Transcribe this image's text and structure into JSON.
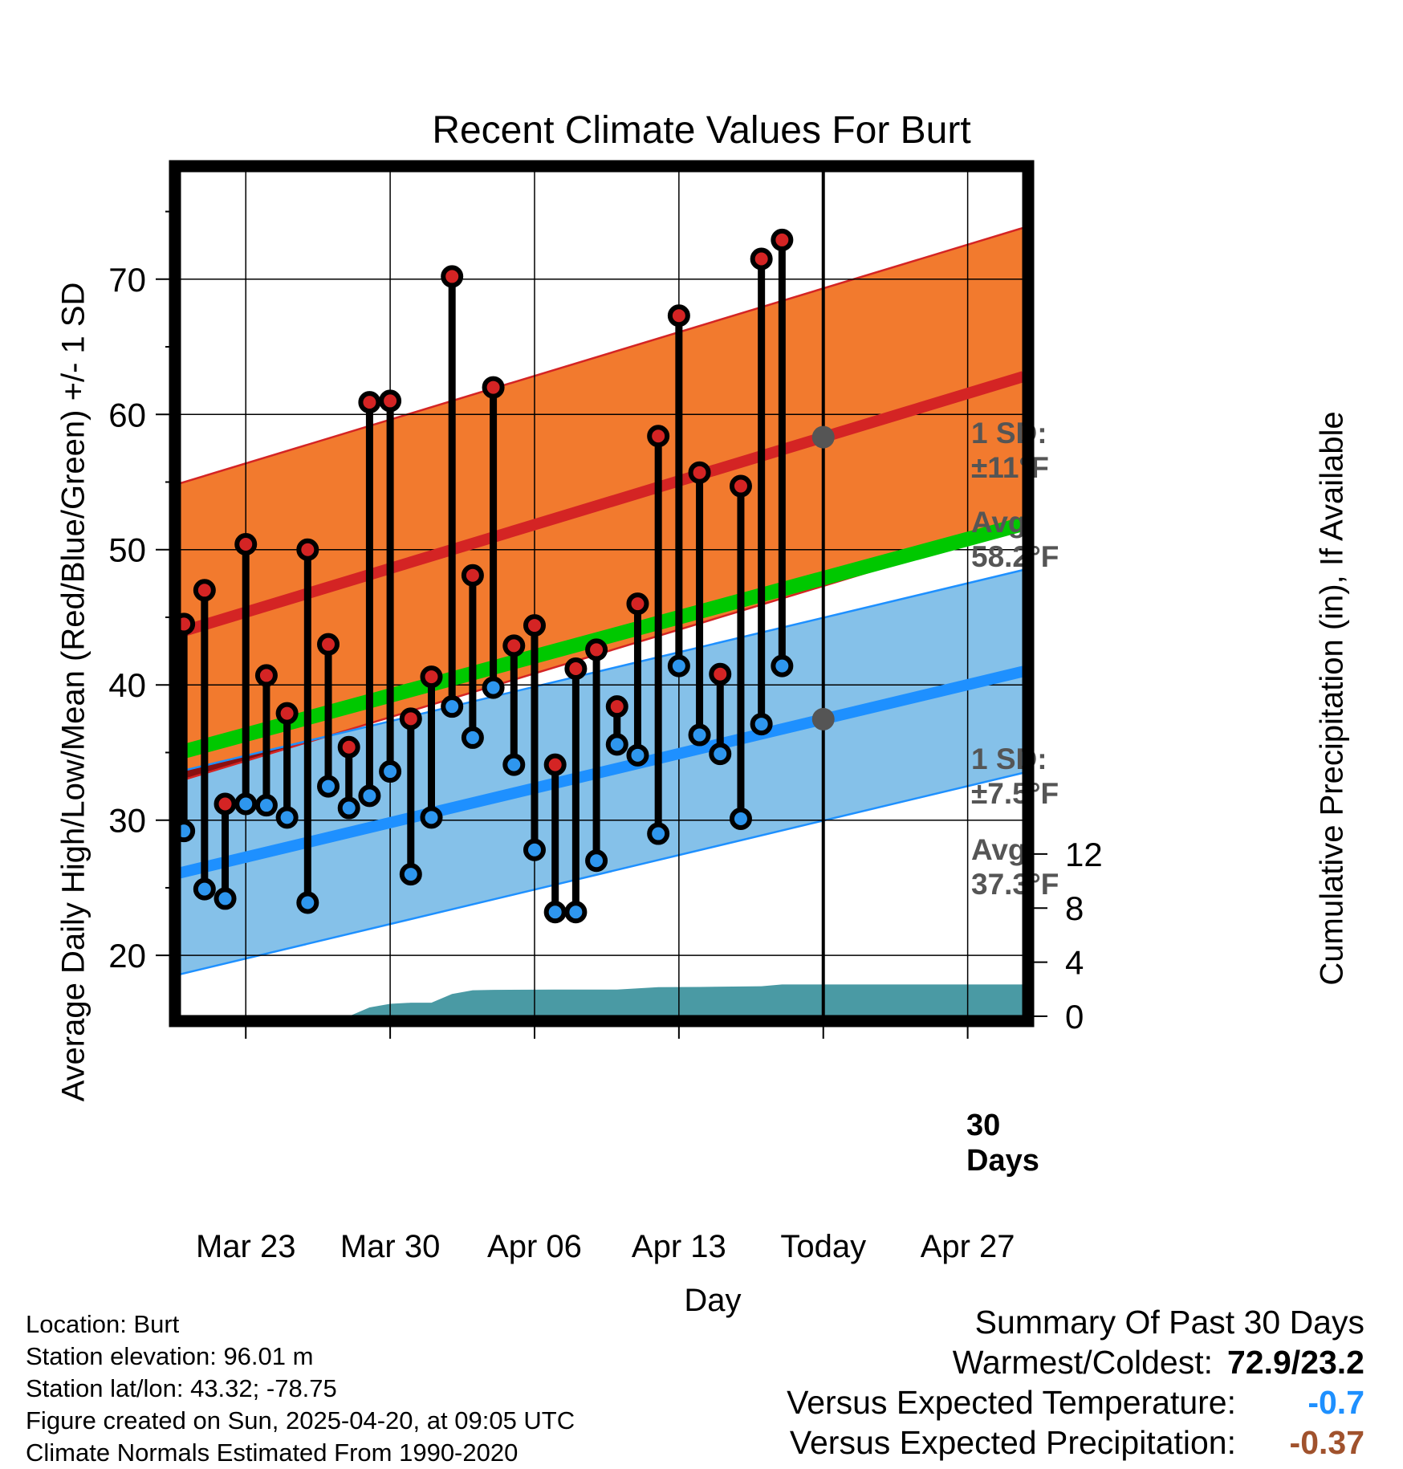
{
  "title": "Recent Climate Values For Burt",
  "axes": {
    "left_label": "Average Daily High/Low/Mean (Red/Blue/Green) +/- 1 SD",
    "right_label": "Cumulative Precipitation (in), If Available",
    "x_label": "Day"
  },
  "colors": {
    "high_band": "#f27a2e",
    "low_band": "#85c1e9",
    "mean_line": "#00c800",
    "overlap": "#8b1010",
    "high_avg_line": "#d42424",
    "low_avg_line": "#1e90ff",
    "precip_fill": "#4a9aa4",
    "high_marker": "#d42424",
    "low_marker": "#2e96ee",
    "annotation_text": "#555555"
  },
  "annotations": {
    "high_sd": [
      "1 SD:",
      "±11°F"
    ],
    "high_avg": [
      "Avg:",
      "58.2°F"
    ],
    "low_sd": [
      "1 SD:",
      "±7.5°F"
    ],
    "low_avg": [
      "Avg:",
      "37.3°F"
    ],
    "days": [
      "30",
      "Days"
    ]
  },
  "footer": {
    "location": "Location: Burt",
    "elevation": "Station elevation: 96.01 m",
    "latlon": "Station lat/lon: 43.32; -78.75",
    "created": "Figure created on Sun, 2025-04-20, at 09:05 UTC",
    "normals": "Climate Normals Estimated From 1990-2020"
  },
  "summary": {
    "heading": "Summary Of Past 30 Days",
    "warm_cold_label": "Warmest/Coldest:",
    "warm_cold_value": "72.9/23.2",
    "temp_label": "Versus Expected Temperature:",
    "temp_value": "-0.7",
    "temp_color": "#1e90ff",
    "precip_label": "Versus Expected Precipitation:",
    "precip_value": "-0.37",
    "precip_color": "#a0522d"
  },
  "chart_data": {
    "type": "line",
    "title": "Recent Climate Values For Burt",
    "xlabel": "Day",
    "ylabel": "Average Daily High/Low/Mean (Red/Blue/Green) +/- 1 SD",
    "y2label": "Cumulative Precipitation (in), If Available",
    "x_ticks": [
      {
        "day": 22,
        "label": "Mar 23"
      },
      {
        "day": 29,
        "label": "Mar 30"
      },
      {
        "day": 36,
        "label": "Apr 06"
      },
      {
        "day": 43,
        "label": "Apr 13"
      },
      {
        "day": 50,
        "label": "Today"
      },
      {
        "day": 57,
        "label": "Apr 27"
      }
    ],
    "x_range_days": [
      18.8,
      59.7
    ],
    "today_day": 50,
    "ylim": [
      15.5,
      78
    ],
    "y_ticks": [
      20,
      30,
      40,
      50,
      60,
      70
    ],
    "y2_ticks": [
      0,
      4,
      8,
      12
    ],
    "y2_mapping": {
      "p0_at_temp": 15.5,
      "temp_per_inch": 1.0
    },
    "high_normal": {
      "start": 43.9,
      "end": 62.8,
      "sd": 11
    },
    "low_normal": {
      "start": 26.1,
      "end": 41.0,
      "sd": 7.5
    },
    "mean_normal": {
      "start": 35.0,
      "end": 51.9
    },
    "daily": [
      {
        "date": "Mar 20",
        "high": 44.5,
        "low": 29.2
      },
      {
        "date": "Mar 21",
        "high": 47.0,
        "low": 24.9
      },
      {
        "date": "Mar 22",
        "high": 31.2,
        "low": 24.2
      },
      {
        "date": "Mar 23",
        "high": 50.4,
        "low": 31.2
      },
      {
        "date": "Mar 24",
        "high": 40.7,
        "low": 31.1
      },
      {
        "date": "Mar 25",
        "high": 37.9,
        "low": 30.2
      },
      {
        "date": "Mar 26",
        "high": 50.0,
        "low": 23.9
      },
      {
        "date": "Mar 27",
        "high": 43.0,
        "low": 32.5
      },
      {
        "date": "Mar 28",
        "high": 35.4,
        "low": 30.9
      },
      {
        "date": "Mar 29",
        "high": 60.9,
        "low": 31.8
      },
      {
        "date": "Mar 30",
        "high": 61.0,
        "low": 33.6
      },
      {
        "date": "Mar 31",
        "high": 37.5,
        "low": 26.0
      },
      {
        "date": "Apr 01",
        "high": 40.6,
        "low": 30.2
      },
      {
        "date": "Apr 02",
        "high": 70.2,
        "low": 38.4
      },
      {
        "date": "Apr 03",
        "high": 48.1,
        "low": 36.1
      },
      {
        "date": "Apr 04",
        "high": 62.0,
        "low": 39.8
      },
      {
        "date": "Apr 05",
        "high": 42.9,
        "low": 34.1
      },
      {
        "date": "Apr 06",
        "high": 44.4,
        "low": 27.8
      },
      {
        "date": "Apr 07",
        "high": 34.1,
        "low": 23.2
      },
      {
        "date": "Apr 08",
        "high": 41.2,
        "low": 23.2
      },
      {
        "date": "Apr 09",
        "high": 42.6,
        "low": 27.0
      },
      {
        "date": "Apr 10",
        "high": 38.4,
        "low": 35.6
      },
      {
        "date": "Apr 11",
        "high": 46.0,
        "low": 34.8
      },
      {
        "date": "Apr 12",
        "high": 58.4,
        "low": 29.0
      },
      {
        "date": "Apr 13",
        "high": 67.3,
        "low": 41.4
      },
      {
        "date": "Apr 14",
        "high": 55.7,
        "low": 36.3
      },
      {
        "date": "Apr 15",
        "high": 40.8,
        "low": 34.9
      },
      {
        "date": "Apr 16",
        "high": 54.7,
        "low": 30.1
      },
      {
        "date": "Apr 17",
        "high": 71.5,
        "low": 37.1
      },
      {
        "date": "Apr 18",
        "high": 72.9,
        "low": 41.4
      }
    ],
    "precip_cumulative": [
      {
        "day": 27.0,
        "inches": 0.0
      },
      {
        "day": 28.0,
        "inches": 0.65
      },
      {
        "day": 29.0,
        "inches": 0.92
      },
      {
        "day": 30.0,
        "inches": 1.0
      },
      {
        "day": 31.0,
        "inches": 1.0
      },
      {
        "day": 32.0,
        "inches": 1.65
      },
      {
        "day": 33.0,
        "inches": 1.92
      },
      {
        "day": 34.0,
        "inches": 1.95
      },
      {
        "day": 37.0,
        "inches": 1.97
      },
      {
        "day": 40.0,
        "inches": 1.97
      },
      {
        "day": 42.0,
        "inches": 2.15
      },
      {
        "day": 44.0,
        "inches": 2.17
      },
      {
        "day": 47.0,
        "inches": 2.22
      },
      {
        "day": 48.0,
        "inches": 2.35
      },
      {
        "day": 59.7,
        "inches": 2.35
      }
    ]
  }
}
